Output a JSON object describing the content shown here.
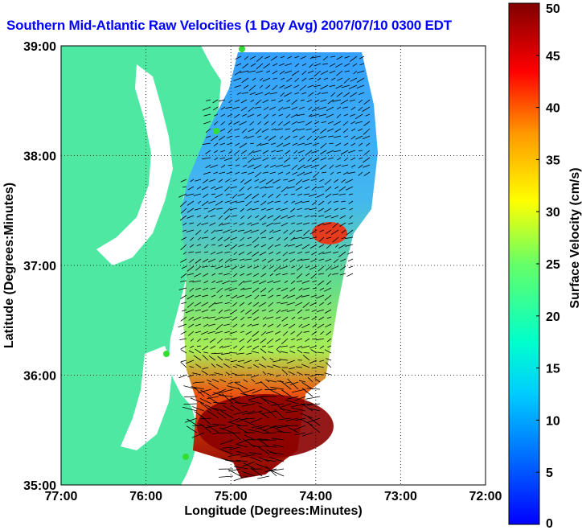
{
  "title": "Southern Mid-Atlantic Raw Velocities (1 Day Avg) 2007/07/10 0300 EDT",
  "xlabel": "Longitude (Degrees:Minutes)",
  "ylabel": "Latitude (Degrees:Minutes)",
  "x_ticks": [
    "77:00",
    "76:00",
    "75:00",
    "74:00",
    "73:00",
    "72:00"
  ],
  "y_ticks": [
    "39:00",
    "38:00",
    "37:00",
    "36:00",
    "35:00"
  ],
  "colorbar": {
    "label": "Surface Velocity (cm/s)",
    "ticks": [
      "50",
      "45",
      "40",
      "35",
      "30",
      "25",
      "20",
      "15",
      "10",
      "5",
      "0"
    ],
    "min": 0,
    "max": 50,
    "colormap": "jet"
  },
  "colors": {
    "land": "#4ee8a3",
    "title": "#0000ff",
    "station": "#33dd33"
  },
  "map": {
    "lon_range": [
      -77,
      -72
    ],
    "lat_range": [
      35,
      39
    ],
    "grid": true,
    "stations": 5
  }
}
